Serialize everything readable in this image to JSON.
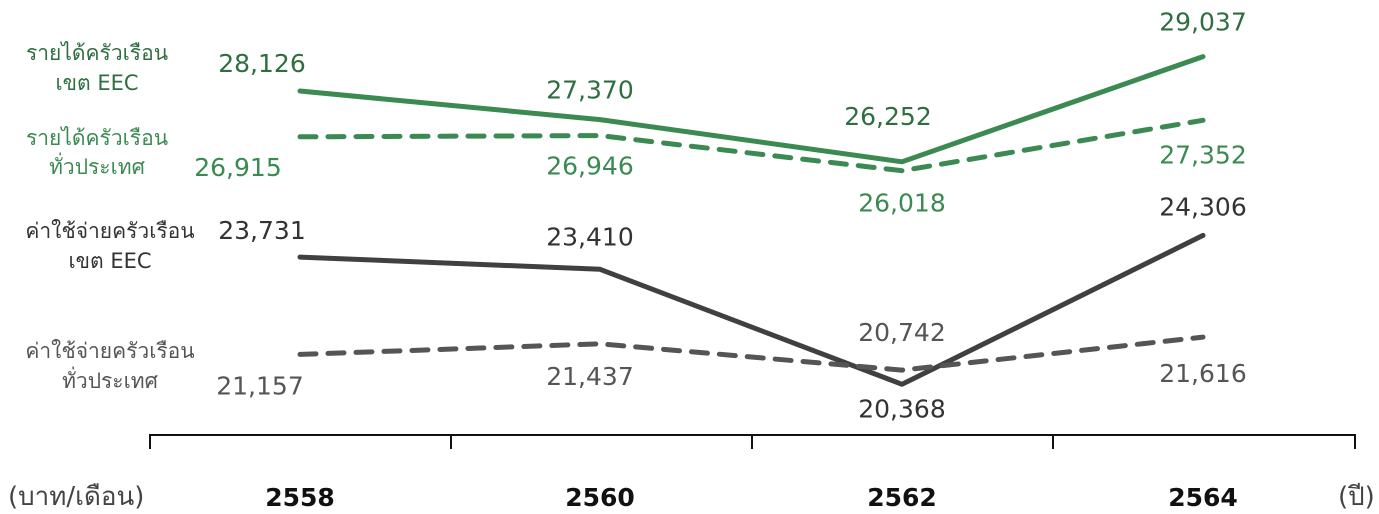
{
  "chart_data": {
    "type": "line",
    "title": "",
    "x": [
      "2558",
      "2560",
      "2562",
      "2564"
    ],
    "x_unit_label": "(ปี)",
    "y_unit_label": "(บาท/เดือน)",
    "grid": false,
    "legend": "left",
    "series": [
      {
        "name": "รายได้ครัวเรือน เขต EEC",
        "legend_lines": [
          "รายได้ครัวเรือน",
          "เขต EEC"
        ],
        "values": [
          28126,
          27370,
          26252,
          29037
        ],
        "value_labels": [
          "28,126",
          "27,370",
          "26,252",
          "29,037"
        ],
        "color": "#3a8a52",
        "label_color": "#2f6e40",
        "style": "solid"
      },
      {
        "name": "รายได้ครัวเรือน ทั่วประเทศ",
        "legend_lines": [
          "รายได้ครัวเรือน",
          "ทั่วประเทศ"
        ],
        "values": [
          26915,
          26946,
          26018,
          27352
        ],
        "value_labels": [
          "26,915",
          "26,946",
          "26,018",
          "27,352"
        ],
        "color": "#3a8a52",
        "label_color": "#3a8a52",
        "style": "dashed"
      },
      {
        "name": "ค่าใช้จ่ายครัวเรือน เขต EEC",
        "legend_lines": [
          "ค่าใช้จ่ายครัวเรือน",
          "เขต EEC"
        ],
        "values": [
          23731,
          23410,
          20368,
          24306
        ],
        "value_labels": [
          "23,731",
          "23,410",
          "20,368",
          "24,306"
        ],
        "color": "#404040",
        "label_color": "#333333",
        "style": "solid"
      },
      {
        "name": "ค่าใช้จ่ายครัวเรือน ทั่วประเทศ",
        "legend_lines": [
          "ค่าใช้จ่ายครัวเรือน",
          "ทั่วประเทศ"
        ],
        "values": [
          21157,
          21437,
          20742,
          21616
        ],
        "value_labels": [
          "21,157",
          "21,437",
          "20,742",
          "21,616"
        ],
        "color": "#555555",
        "label_color": "#555555",
        "style": "dashed"
      }
    ]
  }
}
